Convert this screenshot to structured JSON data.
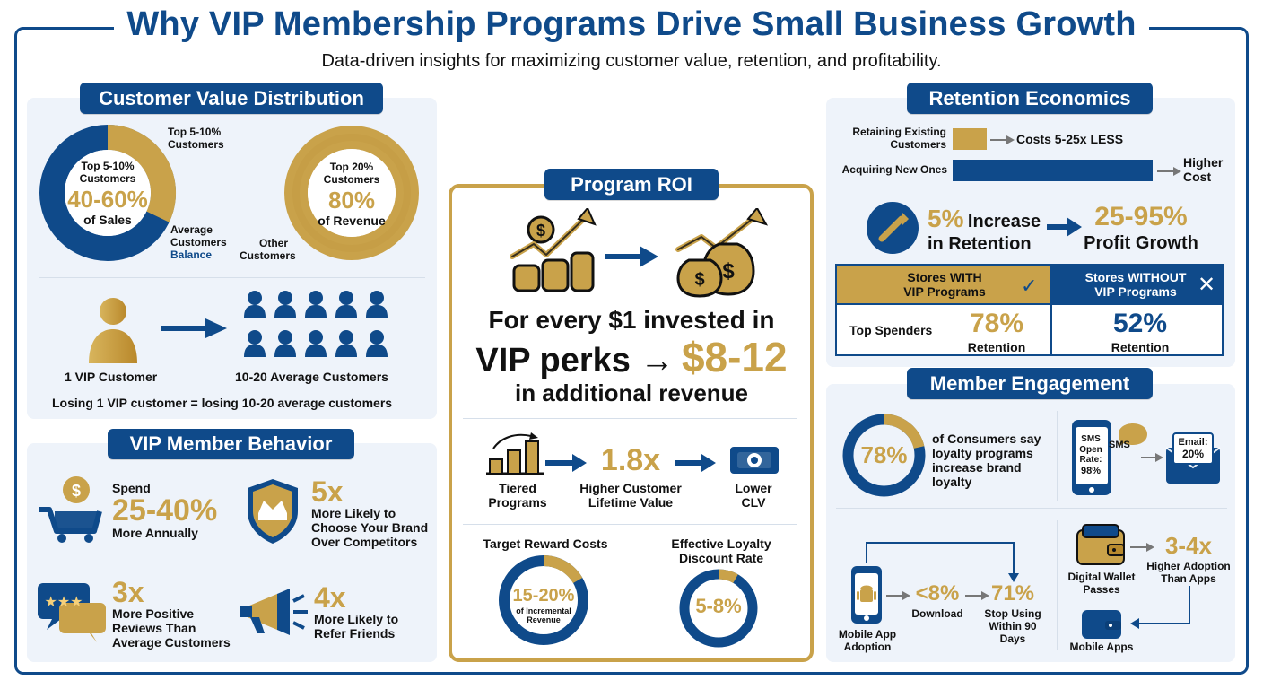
{
  "header": {
    "title": "Why VIP Membership Programs Drive Small Business Growth",
    "subtitle": "Data-driven insights for maximizing customer value, retention, and profitability."
  },
  "colors": {
    "navy": "#0f4a8a",
    "gold": "#c9a24a",
    "panel": "#eef3fa"
  },
  "customer_value": {
    "pill": "Customer Value Distribution",
    "donut1": {
      "center_l1": "Top 5-10%",
      "center_l2": "Customers",
      "center_pct": "40-60%",
      "center_l3": "of Sales",
      "label_top_l1": "Top 5-10%",
      "label_top_l2": "Customers",
      "label_bottom_l1": "Average",
      "label_bottom_l2": "Customers",
      "label_bottom_l3": "Balance"
    },
    "donut2": {
      "center_l1": "Top 20%",
      "center_l2": "Customers",
      "center_pct": "80%",
      "center_l3": "of Revenue",
      "label_other_l1": "Other",
      "label_other_l2": "Customers"
    },
    "vip_label": "1 VIP Customer",
    "avg_label": "10-20 Average Customers",
    "footer": "Losing 1 VIP customer = losing 10-20 average customers"
  },
  "vip_behavior": {
    "pill": "VIP Member Behavior",
    "item1": {
      "l1": "Spend",
      "big": "25-40%",
      "l2": "More Annually"
    },
    "item2": {
      "big": "5x",
      "l1": "More Likely to",
      "l2": "Choose Your Brand",
      "l3": "Over Competitors"
    },
    "item3": {
      "big": "3x",
      "l1": "More Positive",
      "l2": "Reviews Than",
      "l3": "Average Customers"
    },
    "item4": {
      "big": "4x",
      "l1": "More Likely to",
      "l2": "Refer Friends"
    }
  },
  "program_roi": {
    "pill": "Program ROI",
    "line1": "For every $1 invested in",
    "line2_a": "VIP perks →",
    "line2_b": "$8-12",
    "line3": "in additional revenue",
    "tiered_l1": "Tiered",
    "tiered_l2": "Programs",
    "multiplier": "1.8x",
    "clv_l1": "Higher Customer",
    "clv_l2": "Lifetime Value",
    "lower_l1": "Lower",
    "lower_l2": "CLV",
    "target_title": "Target Reward Costs",
    "target_value": "15-20%",
    "target_sub_l1": "of Incremental",
    "target_sub_l2": "Revenue",
    "effective_title_l1": "Effective Loyalty",
    "effective_title_l2": "Discount Rate",
    "effective_value": "5-8%"
  },
  "retention": {
    "pill": "Retention Economics",
    "retain_l1": "Retaining Existing",
    "retain_l2": "Customers",
    "retain_cost": "Costs 5-25x LESS",
    "acquire_label": "Acquiring New Ones",
    "acquire_l1": "Higher",
    "acquire_l2": "Cost",
    "inc_big": "5%",
    "inc_word": "Increase",
    "inc_l2": "in Retention",
    "profit_big": "25-95%",
    "profit_l2": "Profit Growth",
    "table": {
      "with_l1": "Stores WITH",
      "with_l2": "VIP Programs",
      "without_l1": "Stores WITHOUT",
      "without_l2": "VIP Programs",
      "row_label": "Top Spenders",
      "with_value": "78%",
      "with_sub": "Retention",
      "without_value": "52%",
      "without_sub": "Retention"
    }
  },
  "engagement": {
    "pill": "Member Engagement",
    "donut_value": "78%",
    "donut_text_l1": "of Consumers say",
    "donut_text_l2": "loyalty programs",
    "donut_text_l3": "increase brand",
    "donut_text_l4": "loyalty",
    "sms_l1": "SMS",
    "sms_l2": "Open",
    "sms_l3": "Rate:",
    "sms_l4": "98%",
    "sms_bubble": "SMS",
    "email_l1": "Email:",
    "email_l2": "20%",
    "app_l1": "Mobile App",
    "app_l2": "Adoption",
    "download_big": "<8%",
    "download_label": "Download",
    "stop_big": "71%",
    "stop_l1": "Stop Using",
    "stop_l2": "Within 90",
    "stop_l3": "Days",
    "wallet_l1": "Digital Wallet",
    "wallet_l2": "Passes",
    "adoption_big": "3-4x",
    "adoption_l1": "Higher Adoption",
    "adoption_l2": "Than Apps",
    "mobile_apps": "Mobile Apps"
  }
}
